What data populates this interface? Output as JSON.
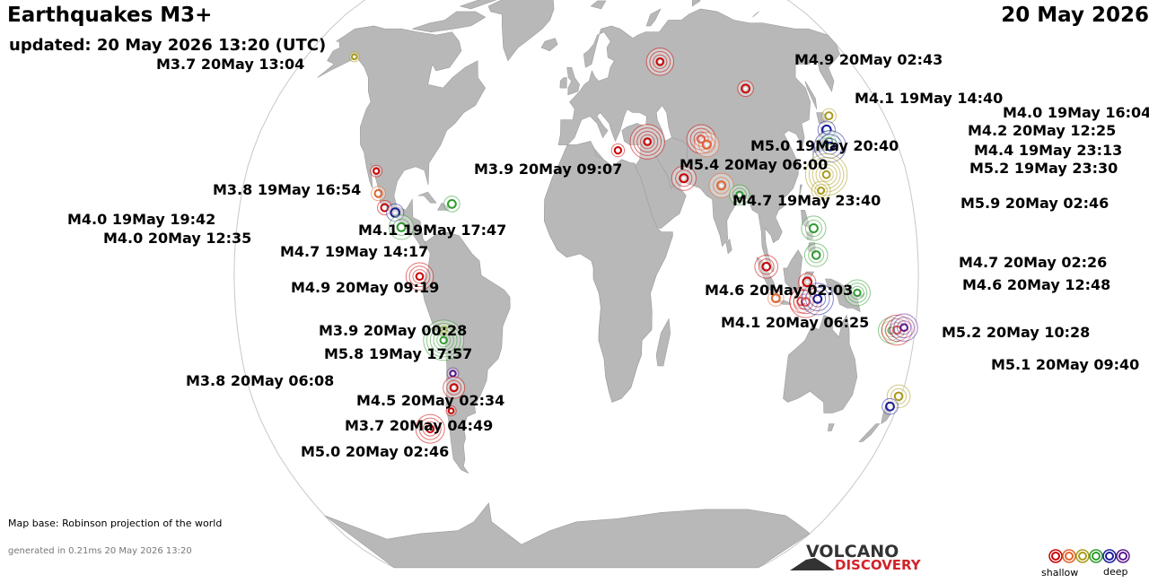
{
  "header": {
    "title": "Earthquakes M3+",
    "date": "20 May 2026",
    "updated": "updated: 20 May 2026 13:20 (UTC)"
  },
  "footer": {
    "map_base": "Map base: Robinson projection of the world",
    "generated": "generated in 0.21ms 20 May 2026 13:20"
  },
  "logo": {
    "line1": "VOLCANO",
    "line2": "DISCOVERY"
  },
  "legend": {
    "shallow": "shallow",
    "deep": "deep",
    "colors": [
      "#cc0000",
      "#e2632a",
      "#a89b1a",
      "#2e9c2e",
      "#1c1c9c",
      "#5a1a8c"
    ]
  },
  "colors": {
    "ocean": "#ffffff",
    "land": "#b8b8b8",
    "coast": "#9d9d9d"
  },
  "labels": [
    {
      "text": "M3.7 20May 13:04"
    },
    {
      "text": "M4.9 20May 02:43"
    },
    {
      "text": "M4.1 19May 14:40"
    },
    {
      "text": "M4.0 19May 16:04"
    },
    {
      "text": "M4.2 20May 12:25"
    },
    {
      "text": "M4.4 19May 23:13"
    },
    {
      "text": "M5.2 19May 23:30"
    },
    {
      "text": "M5.0 19May 20:40"
    },
    {
      "text": "M3.9 20May 09:07"
    },
    {
      "text": "M5.4 20May 06:00"
    },
    {
      "text": "M4.7 19May 23:40"
    },
    {
      "text": "M5.9 20May 02:46"
    },
    {
      "text": "M3.8 19May 16:54"
    },
    {
      "text": "M4.0 19May 19:42"
    },
    {
      "text": "M4.0 20May 12:35"
    },
    {
      "text": "M4.1 19May 17:47"
    },
    {
      "text": "M4.7 19May 14:17"
    },
    {
      "text": "M4.9 20May 09:19"
    },
    {
      "text": "M3.9 20May 00:28"
    },
    {
      "text": "M5.8 19May 17:57"
    },
    {
      "text": "M3.8 20May 06:08"
    },
    {
      "text": "M4.5 20May 02:34"
    },
    {
      "text": "M3.7 20May 04:49"
    },
    {
      "text": "M5.0 20May 02:46"
    },
    {
      "text": "M4.7 20May 02:26"
    },
    {
      "text": "M4.6 20May 12:48"
    },
    {
      "text": "M4.6 20May 02:03"
    },
    {
      "text": "M4.1 20May 06:25"
    },
    {
      "text": "M5.2 20May 10:28"
    },
    {
      "text": "M5.1 20May 09:40"
    }
  ],
  "quakes": [
    {
      "lat": 61.2,
      "lon": -147.9,
      "mag": 3.7,
      "color": "#a89b1a"
    },
    {
      "lat": 59.7,
      "lon": 55.0,
      "mag": 4.9,
      "color": "#cc0000"
    },
    {
      "lat": 51.8,
      "lon": 104.0,
      "mag": 4.1,
      "color": "#cc0000"
    },
    {
      "lat": 44.1,
      "lon": 147.5,
      "mag": 4.0,
      "color": "#a89b1a"
    },
    {
      "lat": 40.2,
      "lon": 143.0,
      "mag": 4.2,
      "color": "#1c1c9c"
    },
    {
      "lat": 37.1,
      "lon": 142.3,
      "mag": 4.4,
      "color": "#2e9c2e"
    },
    {
      "lat": 35.6,
      "lon": 142.0,
      "mag": 5.2,
      "color": "#1c1c9c"
    },
    {
      "lat": 37.6,
      "lon": 70.5,
      "mag": 5.0,
      "color": "#cc0000"
    },
    {
      "lat": 36.1,
      "lon": 73.2,
      "mag": 4.7,
      "color": "#e2632a"
    },
    {
      "lat": 34.5,
      "lon": 23.2,
      "mag": 3.9,
      "color": "#cc0000"
    },
    {
      "lat": 36.9,
      "lon": 40.0,
      "mag": 5.4,
      "color": "#cc0000"
    },
    {
      "lat": 26.8,
      "lon": 58.4,
      "mag": 4.7,
      "color": "#cc0000"
    },
    {
      "lat": 24.8,
      "lon": 78.4,
      "mag": 4.7,
      "color": "#e2632a"
    },
    {
      "lat": 22.2,
      "lon": 87.8,
      "mag": 4.4,
      "color": "#2e9c2e"
    },
    {
      "lat": 27.8,
      "lon": 136.2,
      "mag": 5.9,
      "color": "#a89b1a"
    },
    {
      "lat": 23.4,
      "lon": 131.9,
      "mag": 4.3,
      "color": "#a89b1a"
    },
    {
      "lat": 28.8,
      "lon": -109.2,
      "mag": 3.8,
      "color": "#cc0000"
    },
    {
      "lat": 22.6,
      "lon": -106.5,
      "mag": 4.0,
      "color": "#e2632a"
    },
    {
      "lat": 18.7,
      "lon": -102.4,
      "mag": 4.0,
      "color": "#cc0000"
    },
    {
      "lat": 17.3,
      "lon": -96.6,
      "mag": 4.2,
      "color": "#1c1c9c"
    },
    {
      "lat": 13.3,
      "lon": -92.8,
      "mag": 4.7,
      "color": "#2e9c2e"
    },
    {
      "lat": 19.7,
      "lon": -66.6,
      "mag": 4.1,
      "color": "#2e9c2e"
    },
    {
      "lat": -0.3,
      "lon": -82.4,
      "mag": 4.9,
      "color": "#cc0000"
    },
    {
      "lat": -15.0,
      "lon": -70.3,
      "mag": 3.9,
      "color": "#a89b1a"
    },
    {
      "lat": -17.9,
      "lon": -70.8,
      "mag": 5.8,
      "color": "#2e9c2e"
    },
    {
      "lat": -27.1,
      "lon": -67.1,
      "mag": 3.8,
      "color": "#5a1a8c"
    },
    {
      "lat": -31.0,
      "lon": -67.3,
      "mag": 4.5,
      "color": "#cc0000"
    },
    {
      "lat": -37.4,
      "lon": -70.6,
      "mag": 3.7,
      "color": "#cc0000"
    },
    {
      "lat": -42.4,
      "lon": -84.5,
      "mag": 5.0,
      "color": "#cc0000"
    },
    {
      "lat": 13.0,
      "lon": 125.8,
      "mag": 4.7,
      "color": "#2e9c2e"
    },
    {
      "lat": 5.6,
      "lon": 126.4,
      "mag": 4.6,
      "color": "#2e9c2e"
    },
    {
      "lat": 2.4,
      "lon": 100.0,
      "mag": 4.6,
      "color": "#cc0000"
    },
    {
      "lat": -6.3,
      "lon": 105.2,
      "mag": 4.1,
      "color": "#e2632a"
    },
    {
      "lat": -7.2,
      "lon": 118.6,
      "mag": 4.6,
      "color": "#cc0000"
    },
    {
      "lat": -7.3,
      "lon": 121.0,
      "mag": 5.2,
      "color": "#cc0000"
    },
    {
      "lat": -6.5,
      "lon": 127.2,
      "mag": 5.2,
      "color": "#1c1c9c"
    },
    {
      "lat": -1.8,
      "lon": 121.5,
      "mag": 4.2,
      "color": "#cc0000"
    },
    {
      "lat": -4.8,
      "lon": 148.0,
      "mag": 4.8,
      "color": "#2e9c2e"
    },
    {
      "lat": -15.2,
      "lon": 167.4,
      "mag": 4.8,
      "color": "#2e9c2e"
    },
    {
      "lat": -15.1,
      "lon": 170.4,
      "mag": 5.1,
      "color": "#cc0000"
    },
    {
      "lat": -14.4,
      "lon": 174.0,
      "mag": 4.9,
      "color": "#5a1a8c"
    },
    {
      "lat": -33.4,
      "lon": 178.8,
      "mag": 4.6,
      "color": "#a89b1a"
    },
    {
      "lat": -36.2,
      "lon": 176.0,
      "mag": 4.1,
      "color": "#1c1c9c"
    }
  ]
}
